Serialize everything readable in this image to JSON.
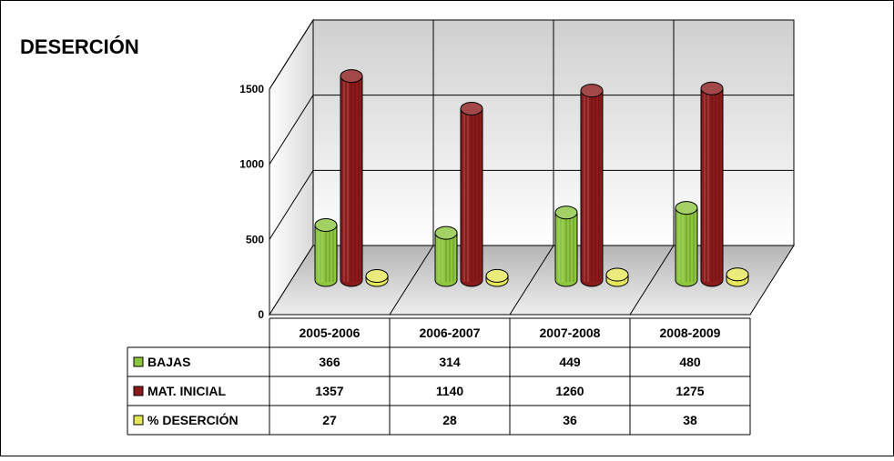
{
  "chart_data": {
    "type": "bar",
    "title": "DESERCIÓN",
    "categories": [
      "2005-2006",
      "2006-2007",
      "2007-2008",
      "2008-2009"
    ],
    "series": [
      {
        "name": "BAJAS",
        "values": [
          366,
          314,
          449,
          480
        ],
        "color": "#8CC63E"
      },
      {
        "name": "MAT. INICIAL",
        "values": [
          1357,
          1140,
          1260,
          1275
        ],
        "color": "#8B1A1A"
      },
      {
        "name": "% DESERCIÓN",
        "values": [
          27,
          28,
          36,
          38
        ],
        "color": "#E6E65A"
      }
    ],
    "ylim": [
      0,
      1500
    ],
    "yticks": [
      0,
      500,
      1000,
      1500
    ],
    "grid": true,
    "legend": "data-table-left",
    "three_d": true
  }
}
